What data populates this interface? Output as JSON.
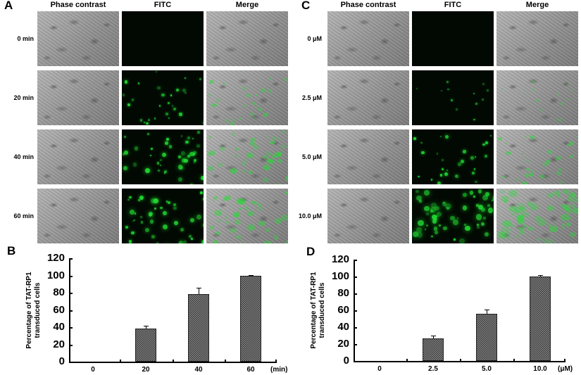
{
  "panels": {
    "A": {
      "letter": "A",
      "columns": [
        "Phase contrast",
        "FITC",
        "Merge"
      ],
      "rows": [
        "0 min",
        "20 min",
        "40 min",
        "60 min"
      ],
      "fitc_intensity": [
        0,
        0.45,
        0.7,
        0.75
      ]
    },
    "C": {
      "letter": "C",
      "columns": [
        "Phase contrast",
        "FITC",
        "Merge"
      ],
      "rows": [
        "0 μM",
        "2.5 μM",
        "5.0 μM",
        "10.0 μM"
      ],
      "fitc_intensity": [
        0,
        0.2,
        0.45,
        0.95
      ]
    },
    "B": {
      "letter": "B"
    },
    "D": {
      "letter": "D"
    }
  },
  "colors": {
    "fluorescence_green": "#22dd33",
    "fitc_background": "#020802",
    "bar_fill": "#3a3a3a"
  },
  "chart_data": [
    {
      "panel": "B",
      "type": "bar",
      "title": "",
      "xlabel": "(min)",
      "ylabel": "Percentage of TAT-RP1 transduced cells",
      "categories": [
        "0",
        "20",
        "40",
        "60"
      ],
      "values": [
        0,
        38,
        78,
        100
      ],
      "error": [
        0,
        4,
        8,
        0.5
      ],
      "ylim": [
        0,
        120
      ],
      "yticks": [
        "0",
        "20",
        "40",
        "60",
        "80",
        "100",
        "120"
      ],
      "grid": false,
      "legend": null
    },
    {
      "panel": "D",
      "type": "bar",
      "title": "",
      "xlabel": "(μM)",
      "ylabel": "Percentage of TAT-RP1 transduced cells",
      "categories": [
        "0",
        "2.5",
        "5.0",
        "10.0"
      ],
      "values": [
        0,
        27,
        56,
        100
      ],
      "error": [
        0,
        3,
        5,
        2
      ],
      "ylim": [
        0,
        120
      ],
      "yticks": [
        "0",
        "20",
        "40",
        "60",
        "80",
        "100",
        "120"
      ],
      "grid": false,
      "legend": null
    }
  ],
  "ylabel_lines": [
    "Percentage of TAT-RP1",
    "transduced cells"
  ]
}
